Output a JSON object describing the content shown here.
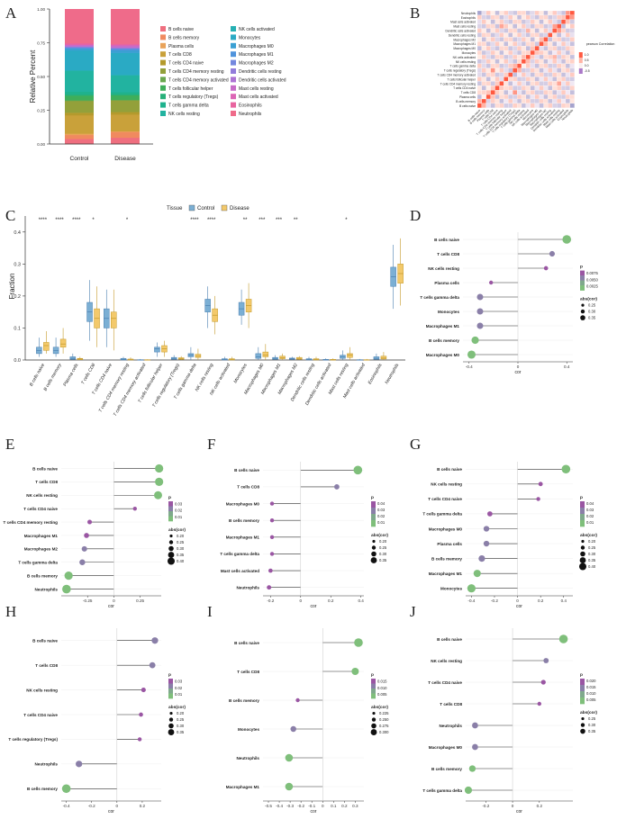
{
  "colors": {
    "pos": "#7fbf7b",
    "neg": "#9a56a3",
    "control": "#7bafd4",
    "disease": "#f3c96b"
  },
  "panel_labels": [
    "A",
    "B",
    "C",
    "D",
    "E",
    "F",
    "G",
    "H",
    "I",
    "J"
  ],
  "chart_data": [
    {
      "id": "A",
      "type": "bar",
      "stacked": true,
      "title": "",
      "ylabel": "Relative Percent",
      "ylim": [
        0,
        1
      ],
      "yticks": [
        "0.00",
        "0.25",
        "0.50",
        "0.75",
        "1.00"
      ],
      "categories": [
        "Control",
        "Disease"
      ],
      "legend": [
        {
          "name": "B cells naive",
          "color": "#ef6f7f"
        },
        {
          "name": "B cells memory",
          "color": "#f08a5f"
        },
        {
          "name": "Plasma cells",
          "color": "#e9a35a"
        },
        {
          "name": "T cells CD8",
          "color": "#c9a13a"
        },
        {
          "name": "T cells CD4 naive",
          "color": "#b49a2c"
        },
        {
          "name": "T cells CD4 memory resting",
          "color": "#93a03a"
        },
        {
          "name": "T cells CD4 memory activated",
          "color": "#6aa84f"
        },
        {
          "name": "T cells follicular helper",
          "color": "#3fae5a"
        },
        {
          "name": "T cells regulatory (Tregs)",
          "color": "#27b07a"
        },
        {
          "name": "T cells gamma delta",
          "color": "#1fb28d"
        },
        {
          "name": "NK cells resting",
          "color": "#22b3a0"
        },
        {
          "name": "NK cells activated",
          "color": "#26b0b3"
        },
        {
          "name": "Monocytes",
          "color": "#2aaac4"
        },
        {
          "name": "Macrophages M0",
          "color": "#3aa0d3"
        },
        {
          "name": "Macrophages M1",
          "color": "#4f93dc"
        },
        {
          "name": "Macrophages M2",
          "color": "#7387de"
        },
        {
          "name": "Dendritic cells resting",
          "color": "#927cdb"
        },
        {
          "name": "Dendritic cells activated",
          "color": "#ad73d4"
        },
        {
          "name": "Mast cells resting",
          "color": "#c76bc8"
        },
        {
          "name": "Mast cells activated",
          "color": "#dc66b6"
        },
        {
          "name": "Eosinophils",
          "color": "#e8649f"
        },
        {
          "name": "Neutrophils",
          "color": "#ef6b8a"
        }
      ],
      "series": [
        {
          "name": "B cells naive",
          "values": [
            0.04,
            0.05
          ]
        },
        {
          "name": "B cells memory",
          "values": [
            0.03,
            0.045
          ]
        },
        {
          "name": "Plasma cells",
          "values": [
            0.01,
            0.005
          ]
        },
        {
          "name": "T cells CD8",
          "values": [
            0.14,
            0.13
          ]
        },
        {
          "name": "T cells CD4 naive",
          "values": [
            0.02,
            0.02
          ]
        },
        {
          "name": "T cells CD4 memory resting",
          "values": [
            0.09,
            0.09
          ]
        },
        {
          "name": "T cells CD4 memory activated",
          "values": [
            0.005,
            0.005
          ]
        },
        {
          "name": "T cells follicular helper",
          "values": [
            0.035,
            0.035
          ]
        },
        {
          "name": "T cells regulatory (Tregs)",
          "values": [
            0.01,
            0.01
          ]
        },
        {
          "name": "T cells gamma delta",
          "values": [
            0.02,
            0.015
          ]
        },
        {
          "name": "NK cells resting",
          "values": [
            0.16,
            0.13
          ]
        },
        {
          "name": "NK cells activated",
          "values": [
            0.005,
            0.005
          ]
        },
        {
          "name": "Monocytes",
          "values": [
            0.15,
            0.17
          ]
        },
        {
          "name": "Macrophages M0",
          "values": [
            0.015,
            0.02
          ]
        },
        {
          "name": "Macrophages M1",
          "values": [
            0.005,
            0.01
          ]
        },
        {
          "name": "Macrophages M2",
          "values": [
            0.005,
            0.005
          ]
        },
        {
          "name": "Dendritic cells resting",
          "values": [
            0.005,
            0.005
          ]
        },
        {
          "name": "Dendritic cells activated",
          "values": [
            0.003,
            0.003
          ]
        },
        {
          "name": "Mast cells resting",
          "values": [
            0.01,
            0.015
          ]
        },
        {
          "name": "Mast cells activated",
          "values": [
            0.003,
            0.003
          ]
        },
        {
          "name": "Eosinophils",
          "values": [
            0.01,
            0.01
          ]
        },
        {
          "name": "Neutrophils",
          "values": [
            0.26,
            0.27
          ]
        }
      ]
    },
    {
      "id": "B",
      "type": "heatmap",
      "title": "",
      "row_labels": [
        "Neutrophils",
        "Eosinophils",
        "Mast cells activated",
        "Mast cells resting",
        "Dendritic cells activated",
        "Dendritic cells resting",
        "Macrophages M2",
        "Macrophages M1",
        "Macrophages M0",
        "Monocytes",
        "NK cells activated",
        "NK cells resting",
        "T cells gamma delta",
        "T cells regulatory (Tregs)",
        "T cells CD4 memory activated",
        "T cells follicular helper",
        "T cells CD4 memory resting",
        "T cells CD4 naive",
        "T cells CD8",
        "Plasma cells",
        "B cells memory",
        "B cells naive"
      ],
      "legend_title": "pearson Correlation",
      "legend_ticks": [
        "1.0",
        "0.5",
        "0.0",
        "-0.5"
      ]
    },
    {
      "id": "C",
      "type": "box",
      "ylabel": "Fraction",
      "ylim": [
        0,
        0.45
      ],
      "yticks": [
        "0.0",
        "0.1",
        "0.2",
        "0.3",
        "0.4"
      ],
      "legend_title": "Tissue",
      "groups": [
        "Control",
        "Disease"
      ],
      "categories": [
        "B cells naive",
        "B cells memory",
        "Plasma cells",
        "T cells CD8",
        "T cells CD4 naive",
        "T cells CD4 memory resting",
        "T cells CD4 memory activated",
        "T cells follicular helper",
        "T cells regulatory (Tregs)",
        "T cells gamma delta",
        "NK cells resting",
        "NK cells activated",
        "Monocytes",
        "Macrophages M0",
        "Macrophages M1",
        "Macrophages M2",
        "Dendritic cells resting",
        "Dendritic cells activated",
        "Mast cells resting",
        "Mast cells activated",
        "Eosinophils",
        "Neutrophils"
      ],
      "significance": [
        "****",
        "****",
        "****",
        "*",
        "",
        "*",
        "",
        "",
        "",
        "****",
        "****",
        "",
        "**",
        "***",
        "***",
        "**",
        "",
        "",
        "*",
        "",
        "",
        ""
      ],
      "stats": [
        [
          [
            0.01,
            0.02,
            0.03,
            0.04,
            0.07
          ],
          [
            0.02,
            0.03,
            0.045,
            0.055,
            0.09
          ]
        ],
        [
          [
            0.01,
            0.02,
            0.03,
            0.04,
            0.07
          ],
          [
            0.02,
            0.04,
            0.05,
            0.065,
            0.1
          ]
        ],
        [
          [
            0,
            0.002,
            0.005,
            0.01,
            0.02
          ],
          [
            0,
            0.001,
            0.003,
            0.005,
            0.01
          ]
        ],
        [
          [
            0.06,
            0.12,
            0.15,
            0.18,
            0.25
          ],
          [
            0.04,
            0.1,
            0.13,
            0.16,
            0.23
          ]
        ],
        [
          [
            0.04,
            0.1,
            0.13,
            0.16,
            0.22
          ],
          [
            0.03,
            0.1,
            0.13,
            0.15,
            0.22
          ]
        ],
        [
          [
            0,
            0,
            0.002,
            0.005,
            0.01
          ],
          [
            0,
            0,
            0.001,
            0.003,
            0.008
          ]
        ],
        [
          [
            0,
            0,
            0,
            0.001,
            0.003
          ],
          [
            0,
            0,
            0,
            0.001,
            0.002
          ]
        ],
        [
          [
            0.01,
            0.025,
            0.035,
            0.04,
            0.055
          ],
          [
            0.01,
            0.025,
            0.035,
            0.045,
            0.06
          ]
        ],
        [
          [
            0,
            0.002,
            0.005,
            0.008,
            0.015
          ],
          [
            0,
            0.002,
            0.004,
            0.007,
            0.012
          ]
        ],
        [
          [
            0,
            0.01,
            0.015,
            0.02,
            0.04
          ],
          [
            0,
            0.008,
            0.012,
            0.018,
            0.035
          ]
        ],
        [
          [
            0.1,
            0.15,
            0.17,
            0.19,
            0.23
          ],
          [
            0.08,
            0.12,
            0.14,
            0.16,
            0.2
          ]
        ],
        [
          [
            0,
            0,
            0.002,
            0.004,
            0.01
          ],
          [
            0,
            0,
            0.002,
            0.004,
            0.01
          ]
        ],
        [
          [
            0.11,
            0.14,
            0.16,
            0.18,
            0.22
          ],
          [
            0.1,
            0.15,
            0.17,
            0.19,
            0.24
          ]
        ],
        [
          [
            0,
            0.005,
            0.01,
            0.02,
            0.04
          ],
          [
            0,
            0.01,
            0.015,
            0.025,
            0.05
          ]
        ],
        [
          [
            0,
            0.002,
            0.005,
            0.008,
            0.015
          ],
          [
            0,
            0.004,
            0.007,
            0.012,
            0.02
          ]
        ],
        [
          [
            0,
            0.002,
            0.004,
            0.006,
            0.01
          ],
          [
            0,
            0.002,
            0.005,
            0.008,
            0.012
          ]
        ],
        [
          [
            0,
            0,
            0.002,
            0.004,
            0.01
          ],
          [
            0,
            0,
            0.002,
            0.004,
            0.01
          ]
        ],
        [
          [
            0,
            0,
            0,
            0.002,
            0.005
          ],
          [
            0,
            0,
            0,
            0.002,
            0.005
          ]
        ],
        [
          [
            0,
            0.005,
            0.01,
            0.015,
            0.03
          ],
          [
            0,
            0.008,
            0.015,
            0.02,
            0.04
          ]
        ],
        [
          [
            0,
            0,
            0,
            0.001,
            0.003
          ],
          [
            0,
            0,
            0,
            0.001,
            0.003
          ]
        ],
        [
          [
            0,
            0.002,
            0.005,
            0.01,
            0.02
          ],
          [
            0,
            0.003,
            0.006,
            0.012,
            0.025
          ]
        ],
        [
          [
            0.16,
            0.23,
            0.26,
            0.29,
            0.36
          ],
          [
            0.17,
            0.24,
            0.27,
            0.3,
            0.38
          ]
        ]
      ]
    },
    {
      "id": "D",
      "type": "lollipop",
      "xlabel": "cor",
      "xlim": [
        -0.45,
        0.45
      ],
      "xticks": [
        -0.4,
        0,
        0.4
      ],
      "labels": [
        "B cells naive",
        "T cells CD8",
        "NK cells resting",
        "Plasma cells",
        "T cells gamma delta",
        "Monocytes",
        "Macrophages M1",
        "B cells memory",
        "Macrophages M0"
      ],
      "values": [
        0.4,
        0.28,
        0.23,
        -0.22,
        -0.31,
        -0.31,
        -0.31,
        -0.35,
        -0.38
      ],
      "p_title": "p",
      "p_ticks": [
        "0.0075",
        "0.0050",
        "0.0025"
      ],
      "size_title": "abs(cor)",
      "size_ticks": [
        "0.25",
        "0.30",
        "0.35"
      ]
    },
    {
      "id": "E",
      "type": "lollipop",
      "xlabel": "cor",
      "xlim": [
        -0.5,
        0.45
      ],
      "xticks": [
        -0.25,
        0,
        0.25
      ],
      "labels": [
        "B cells naive",
        "T cells CD8",
        "NK cells resting",
        "T cells CD4 naive",
        "T cells CD4 memory resting",
        "Macrophages M1",
        "Macrophages M2",
        "T cells gamma delta",
        "B cells memory",
        "Neutrophils"
      ],
      "values": [
        0.43,
        0.43,
        0.42,
        0.2,
        -0.23,
        -0.26,
        -0.28,
        -0.3,
        -0.43,
        -0.45
      ],
      "p_title": "p",
      "p_ticks": [
        "0.03",
        "0.02",
        "0.01"
      ],
      "size_title": "abs(cor)",
      "size_ticks": [
        "0.20",
        "0.25",
        "0.30",
        "0.35",
        "0.40"
      ]
    },
    {
      "id": "F",
      "type": "lollipop",
      "xlabel": "cor",
      "xlim": [
        -0.25,
        0.42
      ],
      "xticks": [
        -0.2,
        0,
        0.2,
        0.4
      ],
      "labels": [
        "B cells naive",
        "T cells CD8",
        "Macrophages M0",
        "B cells memory",
        "Macrophages M1",
        "T cells gamma delta",
        "Mast cells activated",
        "Neutrophils"
      ],
      "values": [
        0.38,
        0.24,
        -0.19,
        -0.19,
        -0.19,
        -0.19,
        -0.2,
        -0.21
      ],
      "p_title": "p",
      "p_ticks": [
        "0.04",
        "0.03",
        "0.02",
        "0.01"
      ],
      "size_title": "abs(cor)",
      "size_ticks": [
        "0.20",
        "0.25",
        "0.30",
        "0.35"
      ]
    },
    {
      "id": "G",
      "type": "lollipop",
      "xlabel": "cor",
      "xlim": [
        -0.45,
        0.48
      ],
      "xticks": [
        -0.4,
        -0.2,
        0,
        0.2,
        0.4
      ],
      "labels": [
        "B cells naive",
        "NK cells resting",
        "T cells CD4 naive",
        "T cells gamma delta",
        "Macrophages M0",
        "Plasma cells",
        "B cells memory",
        "Macrophages M1",
        "Monocytes"
      ],
      "values": [
        0.42,
        0.2,
        0.18,
        -0.24,
        -0.27,
        -0.27,
        -0.31,
        -0.35,
        -0.4
      ],
      "p_title": "p",
      "p_ticks": [
        "0.04",
        "0.03",
        "0.02",
        "0.01"
      ],
      "size_title": "abs(cor)",
      "size_ticks": [
        "0.20",
        "0.25",
        "0.30",
        "0.35",
        "0.40"
      ]
    },
    {
      "id": "H",
      "type": "lollipop",
      "xlabel": "cor",
      "xlim": [
        -0.44,
        0.35
      ],
      "xticks": [
        -0.4,
        -0.2,
        0,
        0.2
      ],
      "labels": [
        "B cells naive",
        "T cells CD8",
        "NK cells resting",
        "T cells CD4 naive",
        "T cells regulatory (Tregs)",
        "Neutrophils",
        "B cells memory"
      ],
      "values": [
        0.3,
        0.28,
        0.21,
        0.19,
        0.18,
        -0.3,
        -0.4
      ],
      "p_title": "p",
      "p_ticks": [
        "0.03",
        "0.02",
        "0.01"
      ],
      "size_title": "abs(cor)",
      "size_ticks": [
        "0.20",
        "0.25",
        "0.30",
        "0.35"
      ]
    },
    {
      "id": "I",
      "type": "lollipop",
      "xlabel": "cor",
      "xlim": [
        -0.55,
        0.38
      ],
      "xticks": [
        -0.5,
        -0.4,
        -0.3,
        -0.2,
        -0.1,
        0,
        0.1,
        0.2,
        0.3
      ],
      "labels": [
        "B cells naive",
        "T cells CD8",
        "B cells memory",
        "Monocytes",
        "Neutrophils",
        "Macrophages M1"
      ],
      "values": [
        0.33,
        0.3,
        -0.23,
        -0.27,
        -0.31,
        -0.31
      ],
      "p_title": "p",
      "p_ticks": [
        "0.015",
        "0.010",
        "0.005"
      ],
      "size_title": "abs(cor)",
      "size_ticks": [
        "0.225",
        "0.250",
        "0.275",
        "0.300"
      ]
    },
    {
      "id": "J",
      "type": "lollipop",
      "xlabel": "cor",
      "xlim": [
        -0.35,
        0.45
      ],
      "xticks": [
        -0.2,
        0,
        0.2
      ],
      "labels": [
        "B cells naive",
        "NK cells resting",
        "T cells CD4 naive",
        "T cells CD8",
        "Neutrophils",
        "Macrophages M0",
        "B cells memory",
        "T cells gamma delta"
      ],
      "values": [
        0.38,
        0.25,
        0.23,
        0.2,
        -0.28,
        -0.28,
        -0.3,
        -0.33
      ],
      "p_title": "p",
      "p_ticks": [
        "0.020",
        "0.015",
        "0.010",
        "0.005"
      ],
      "size_title": "abs(cor)",
      "size_ticks": [
        "0.25",
        "0.30",
        "0.35"
      ]
    }
  ]
}
